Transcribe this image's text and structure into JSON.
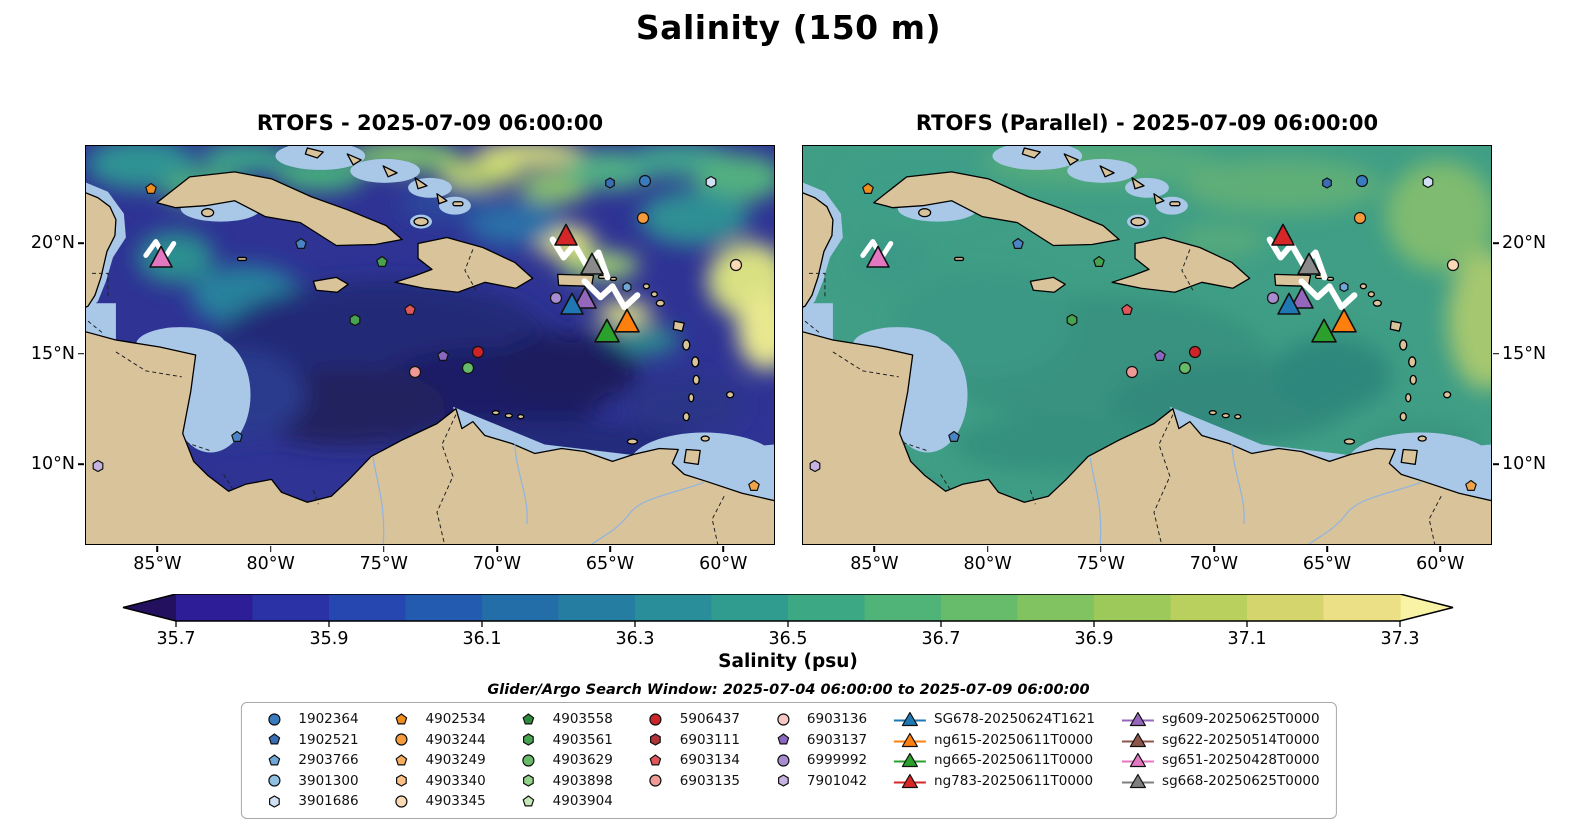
{
  "figure": {
    "title": "Salinity (150 m)"
  },
  "panels": [
    {
      "title": "RTOFS - 2025-07-09 06:00:00"
    },
    {
      "title": "RTOFS (Parallel) - 2025-07-09 06:00:00"
    }
  ],
  "axes": {
    "lat_ticks": [
      {
        "label": "20°N",
        "pct": 24.5
      },
      {
        "label": "15°N",
        "pct": 52.2
      },
      {
        "label": "10°N",
        "pct": 79.8
      }
    ],
    "lon_ticks": [
      {
        "label": "85°W",
        "pct": 10.5
      },
      {
        "label": "80°W",
        "pct": 26.9
      },
      {
        "label": "75°W",
        "pct": 43.3
      },
      {
        "label": "70°W",
        "pct": 59.7
      },
      {
        "label": "65°W",
        "pct": 76.1
      },
      {
        "label": "60°W",
        "pct": 92.5
      }
    ]
  },
  "colorbar": {
    "label": "Salinity (psu)",
    "ticks": [
      "35.7",
      "35.9",
      "36.1",
      "36.3",
      "36.5",
      "36.7",
      "36.9",
      "37.1",
      "37.3"
    ],
    "segment_colors": [
      "#2d1e97",
      "#2a32a6",
      "#2647b0",
      "#235bb0",
      "#236da9",
      "#257ea2",
      "#298e9a",
      "#309c90",
      "#3da984",
      "#50b377",
      "#67bc6b",
      "#81c360",
      "#9cc95a",
      "#b9cf5e",
      "#d4d56c",
      "#ebe085"
    ],
    "under_color": "#23105e",
    "over_color": "#f9f3a6"
  },
  "search_window": "Glider/Argo Search Window: 2025-07-04 06:00:00 to 2025-07-09 06:00:00",
  "legend": {
    "columns": [
      {
        "items": [
          {
            "label": "1902364",
            "shape": "circle",
            "color": "#3a7bbf"
          },
          {
            "label": "1902521",
            "shape": "pentagon",
            "color": "#3a6db4"
          },
          {
            "label": "2903766",
            "shape": "pentagon",
            "color": "#6fa8d8"
          },
          {
            "label": "3901300",
            "shape": "circle",
            "color": "#8fc0e4"
          },
          {
            "label": "3901686",
            "shape": "hexagon",
            "color": "#cfe1f2"
          }
        ]
      },
      {
        "items": [
          {
            "label": "4902534",
            "shape": "pentagon",
            "color": "#ef8d1f"
          },
          {
            "label": "4903244",
            "shape": "circle",
            "color": "#f69b3c"
          },
          {
            "label": "4903249",
            "shape": "pentagon",
            "color": "#f8ad5f"
          },
          {
            "label": "4903340",
            "shape": "hexagon",
            "color": "#fac288"
          },
          {
            "label": "4903345",
            "shape": "circle",
            "color": "#fbd9b5"
          }
        ]
      },
      {
        "items": [
          {
            "label": "4903558",
            "shape": "pentagon",
            "color": "#2e8b3d"
          },
          {
            "label": "4903561",
            "shape": "hexagon",
            "color": "#47a34f"
          },
          {
            "label": "4903629",
            "shape": "circle",
            "color": "#67ba68"
          },
          {
            "label": "4903898",
            "shape": "hexagon",
            "color": "#92d189"
          },
          {
            "label": "4903904",
            "shape": "pentagon",
            "color": "#c5e8ba"
          }
        ]
      },
      {
        "items": [
          {
            "label": "5906437",
            "shape": "circle",
            "color": "#cc2529"
          },
          {
            "label": "6903111",
            "shape": "hexagon",
            "color": "#b13538"
          },
          {
            "label": "6903134",
            "shape": "pentagon",
            "color": "#e0565a"
          },
          {
            "label": "6903135",
            "shape": "circle",
            "color": "#ef9a96"
          }
        ]
      },
      {
        "items": [
          {
            "label": "6903136",
            "shape": "circle",
            "color": "#f6c8c4"
          },
          {
            "label": "6903137",
            "shape": "pentagon",
            "color": "#8a68c0"
          },
          {
            "label": "6999992",
            "shape": "circle",
            "color": "#a78cd0"
          },
          {
            "label": "7901042",
            "shape": "hexagon",
            "color": "#c7b3e2"
          }
        ]
      },
      {
        "items": [
          {
            "label": "SG678-20250624T1621",
            "shape": "glider",
            "color": "#1f77b4"
          },
          {
            "label": "ng615-20250611T0000",
            "shape": "glider",
            "color": "#ff7f0e"
          },
          {
            "label": "ng665-20250611T0000",
            "shape": "glider",
            "color": "#2ca02c"
          },
          {
            "label": "ng783-20250611T0000",
            "shape": "glider",
            "color": "#d62728"
          }
        ]
      },
      {
        "items": [
          {
            "label": "sg609-20250625T0000",
            "shape": "glider",
            "color": "#9467bd"
          },
          {
            "label": "sg622-20250514T0000",
            "shape": "glider",
            "color": "#8c564b"
          },
          {
            "label": "sg651-20250428T0000",
            "shape": "glider",
            "color": "#e377c2"
          },
          {
            "label": "sg668-20250625T0000",
            "shape": "glider",
            "color": "#7f7f7f"
          }
        ]
      }
    ]
  },
  "map_markers": [
    {
      "name": "4902534",
      "shape": "pentagon",
      "color": "#ef8d1f",
      "x": 9.4,
      "y": 10.8,
      "s": 13
    },
    {
      "name": "sg651",
      "shape": "triangle",
      "color": "#e377c2",
      "x": 10.9,
      "y": 28.2,
      "s": 24
    },
    {
      "name": "1902521",
      "shape": "pentagon",
      "color": "#4a84c4",
      "x": 31.2,
      "y": 24.5,
      "s": 13
    },
    {
      "name": "4903558",
      "shape": "pentagon",
      "color": "#47a34f",
      "x": 43.0,
      "y": 29.2,
      "s": 13
    },
    {
      "name": "blue-hexagon-float",
      "shape": "hexagon",
      "color": "#3a6db4",
      "x": 76.1,
      "y": 9.2,
      "s": 12
    },
    {
      "name": "1902364",
      "shape": "circle",
      "color": "#3a7bbf",
      "x": 81.2,
      "y": 8.8,
      "s": 13
    },
    {
      "name": "3901686",
      "shape": "hexagon",
      "color": "#cfe1f2",
      "x": 90.9,
      "y": 9.0,
      "s": 13
    },
    {
      "name": "4903244",
      "shape": "circle",
      "color": "#f69b3c",
      "x": 80.9,
      "y": 18.2,
      "s": 13
    },
    {
      "name": "ng783",
      "shape": "triangle",
      "color": "#d62728",
      "x": 69.7,
      "y": 22.5,
      "s": 24
    },
    {
      "name": "sg668",
      "shape": "triangle",
      "color": "#8a8a8a",
      "x": 73.6,
      "y": 30.0,
      "s": 24
    },
    {
      "name": "4903345",
      "shape": "circle",
      "color": "#fbd9b5",
      "x": 94.5,
      "y": 30.0,
      "s": 13
    },
    {
      "name": "6999992",
      "shape": "circle",
      "color": "#a78cd0",
      "x": 68.3,
      "y": 38.2,
      "s": 13
    },
    {
      "name": "sg609",
      "shape": "triangle",
      "color": "#9467bd",
      "x": 72.5,
      "y": 38.5,
      "s": 24
    },
    {
      "name": "SG678",
      "shape": "triangle",
      "color": "#1f77b4",
      "x": 70.7,
      "y": 40.0,
      "s": 24
    },
    {
      "name": "ng615",
      "shape": "triangle",
      "color": "#ff7f0e",
      "x": 78.6,
      "y": 44.2,
      "s": 26
    },
    {
      "name": "ng665",
      "shape": "triangle",
      "color": "#2ca02c",
      "x": 75.7,
      "y": 46.8,
      "s": 26
    },
    {
      "name": "lightblue-hexagon-float",
      "shape": "hexagon",
      "color": "#6fa8d8",
      "x": 78.7,
      "y": 35.5,
      "s": 11
    },
    {
      "name": "4903561",
      "shape": "hexagon",
      "color": "#47a34f",
      "x": 39.1,
      "y": 43.8,
      "s": 13
    },
    {
      "name": "6903134",
      "shape": "pentagon",
      "color": "#e0565a",
      "x": 47.1,
      "y": 41.2,
      "s": 13
    },
    {
      "name": "6903137",
      "shape": "pentagon",
      "color": "#8a68c0",
      "x": 51.9,
      "y": 52.8,
      "s": 13
    },
    {
      "name": "5906437",
      "shape": "circle",
      "color": "#cc2529",
      "x": 57.0,
      "y": 51.8,
      "s": 13
    },
    {
      "name": "4903629",
      "shape": "circle",
      "color": "#67ba68",
      "x": 55.5,
      "y": 55.8,
      "s": 13
    },
    {
      "name": "6903135",
      "shape": "circle",
      "color": "#ef9a96",
      "x": 47.8,
      "y": 56.8,
      "s": 13
    },
    {
      "name": "2903766",
      "shape": "pentagon",
      "color": "#4a84c4",
      "x": 22.0,
      "y": 73.0,
      "s": 13
    },
    {
      "name": "7901042",
      "shape": "hexagon",
      "color": "#c7b3e2",
      "x": 1.7,
      "y": 80.5,
      "s": 13
    },
    {
      "name": "orange-pentagon-float",
      "shape": "pentagon",
      "color": "#f0a44a",
      "x": 97.1,
      "y": 85.5,
      "s": 13
    }
  ],
  "chart_data": {
    "type": "heatmap",
    "title": "Salinity (150 m)",
    "variable": "Salinity (psu)",
    "panels": [
      "RTOFS - 2025-07-09 06:00:00",
      "RTOFS (Parallel) - 2025-07-09 06:00:00"
    ],
    "colorbar_ticks": [
      35.7,
      35.9,
      36.1,
      36.3,
      36.5,
      36.7,
      36.9,
      37.1,
      37.3
    ],
    "colorbar_range": [
      35.7,
      37.3
    ],
    "extent": {
      "lon_deg_w": [
        88,
        58
      ],
      "lat_deg_n": [
        6.5,
        24.5
      ]
    },
    "search_window": {
      "start": "2025-07-04 06:00:00",
      "end": "2025-07-09 06:00:00"
    },
    "argo_floats": [
      "1902364",
      "1902521",
      "2903766",
      "3901300",
      "3901686",
      "4902534",
      "4903244",
      "4903249",
      "4903340",
      "4903345",
      "4903558",
      "4903561",
      "4903629",
      "4903898",
      "4903904",
      "5906437",
      "6903111",
      "6903134",
      "6903135",
      "6903136",
      "6903137",
      "6999992",
      "7901042"
    ],
    "gliders": [
      "SG678-20250624T1621",
      "ng615-20250611T0000",
      "ng665-20250611T0000",
      "ng783-20250611T0000",
      "sg609-20250625T0000",
      "sg622-20250514T0000",
      "sg651-20250428T0000",
      "sg668-20250625T0000"
    ]
  }
}
